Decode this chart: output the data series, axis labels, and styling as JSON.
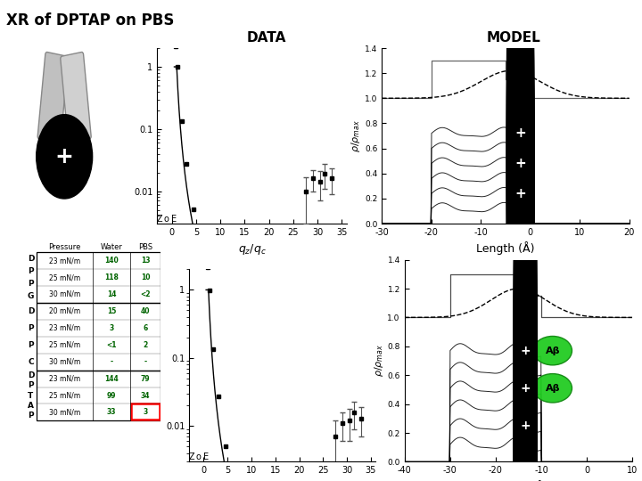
{
  "title": "XR of DPTAP on PBS",
  "col_labels": [
    "Pressure",
    "Water",
    "PBS"
  ],
  "row_groups": [
    {
      "label": [
        "D",
        "P",
        "P",
        "G"
      ],
      "rows": [
        [
          "23 mN/m",
          "140",
          "13"
        ],
        [
          "25 mN/m",
          "118",
          "10"
        ],
        [
          "30 mN/m",
          "14",
          "<2"
        ]
      ]
    },
    {
      "label": [
        "D",
        "P",
        "P",
        "C"
      ],
      "rows": [
        [
          "20 mN/m",
          "15",
          "40"
        ],
        [
          "23 mN/m",
          "3",
          "6"
        ],
        [
          "25 mN/m",
          "<1",
          "2"
        ],
        [
          "30 mN/m",
          "-",
          "-"
        ]
      ]
    },
    {
      "label": [
        "D",
        "P",
        "T",
        "A",
        "P"
      ],
      "rows": [
        [
          "23 mN/m",
          "144",
          "79"
        ],
        [
          "25 mN/m",
          "99",
          "34"
        ],
        [
          "30 mN/m",
          "33",
          "3"
        ]
      ]
    }
  ],
  "highlighted_row_group": 2,
  "highlighted_row": 2,
  "bg_color": "#ffffff",
  "data_label": "DATA",
  "model_label": "MODEL"
}
